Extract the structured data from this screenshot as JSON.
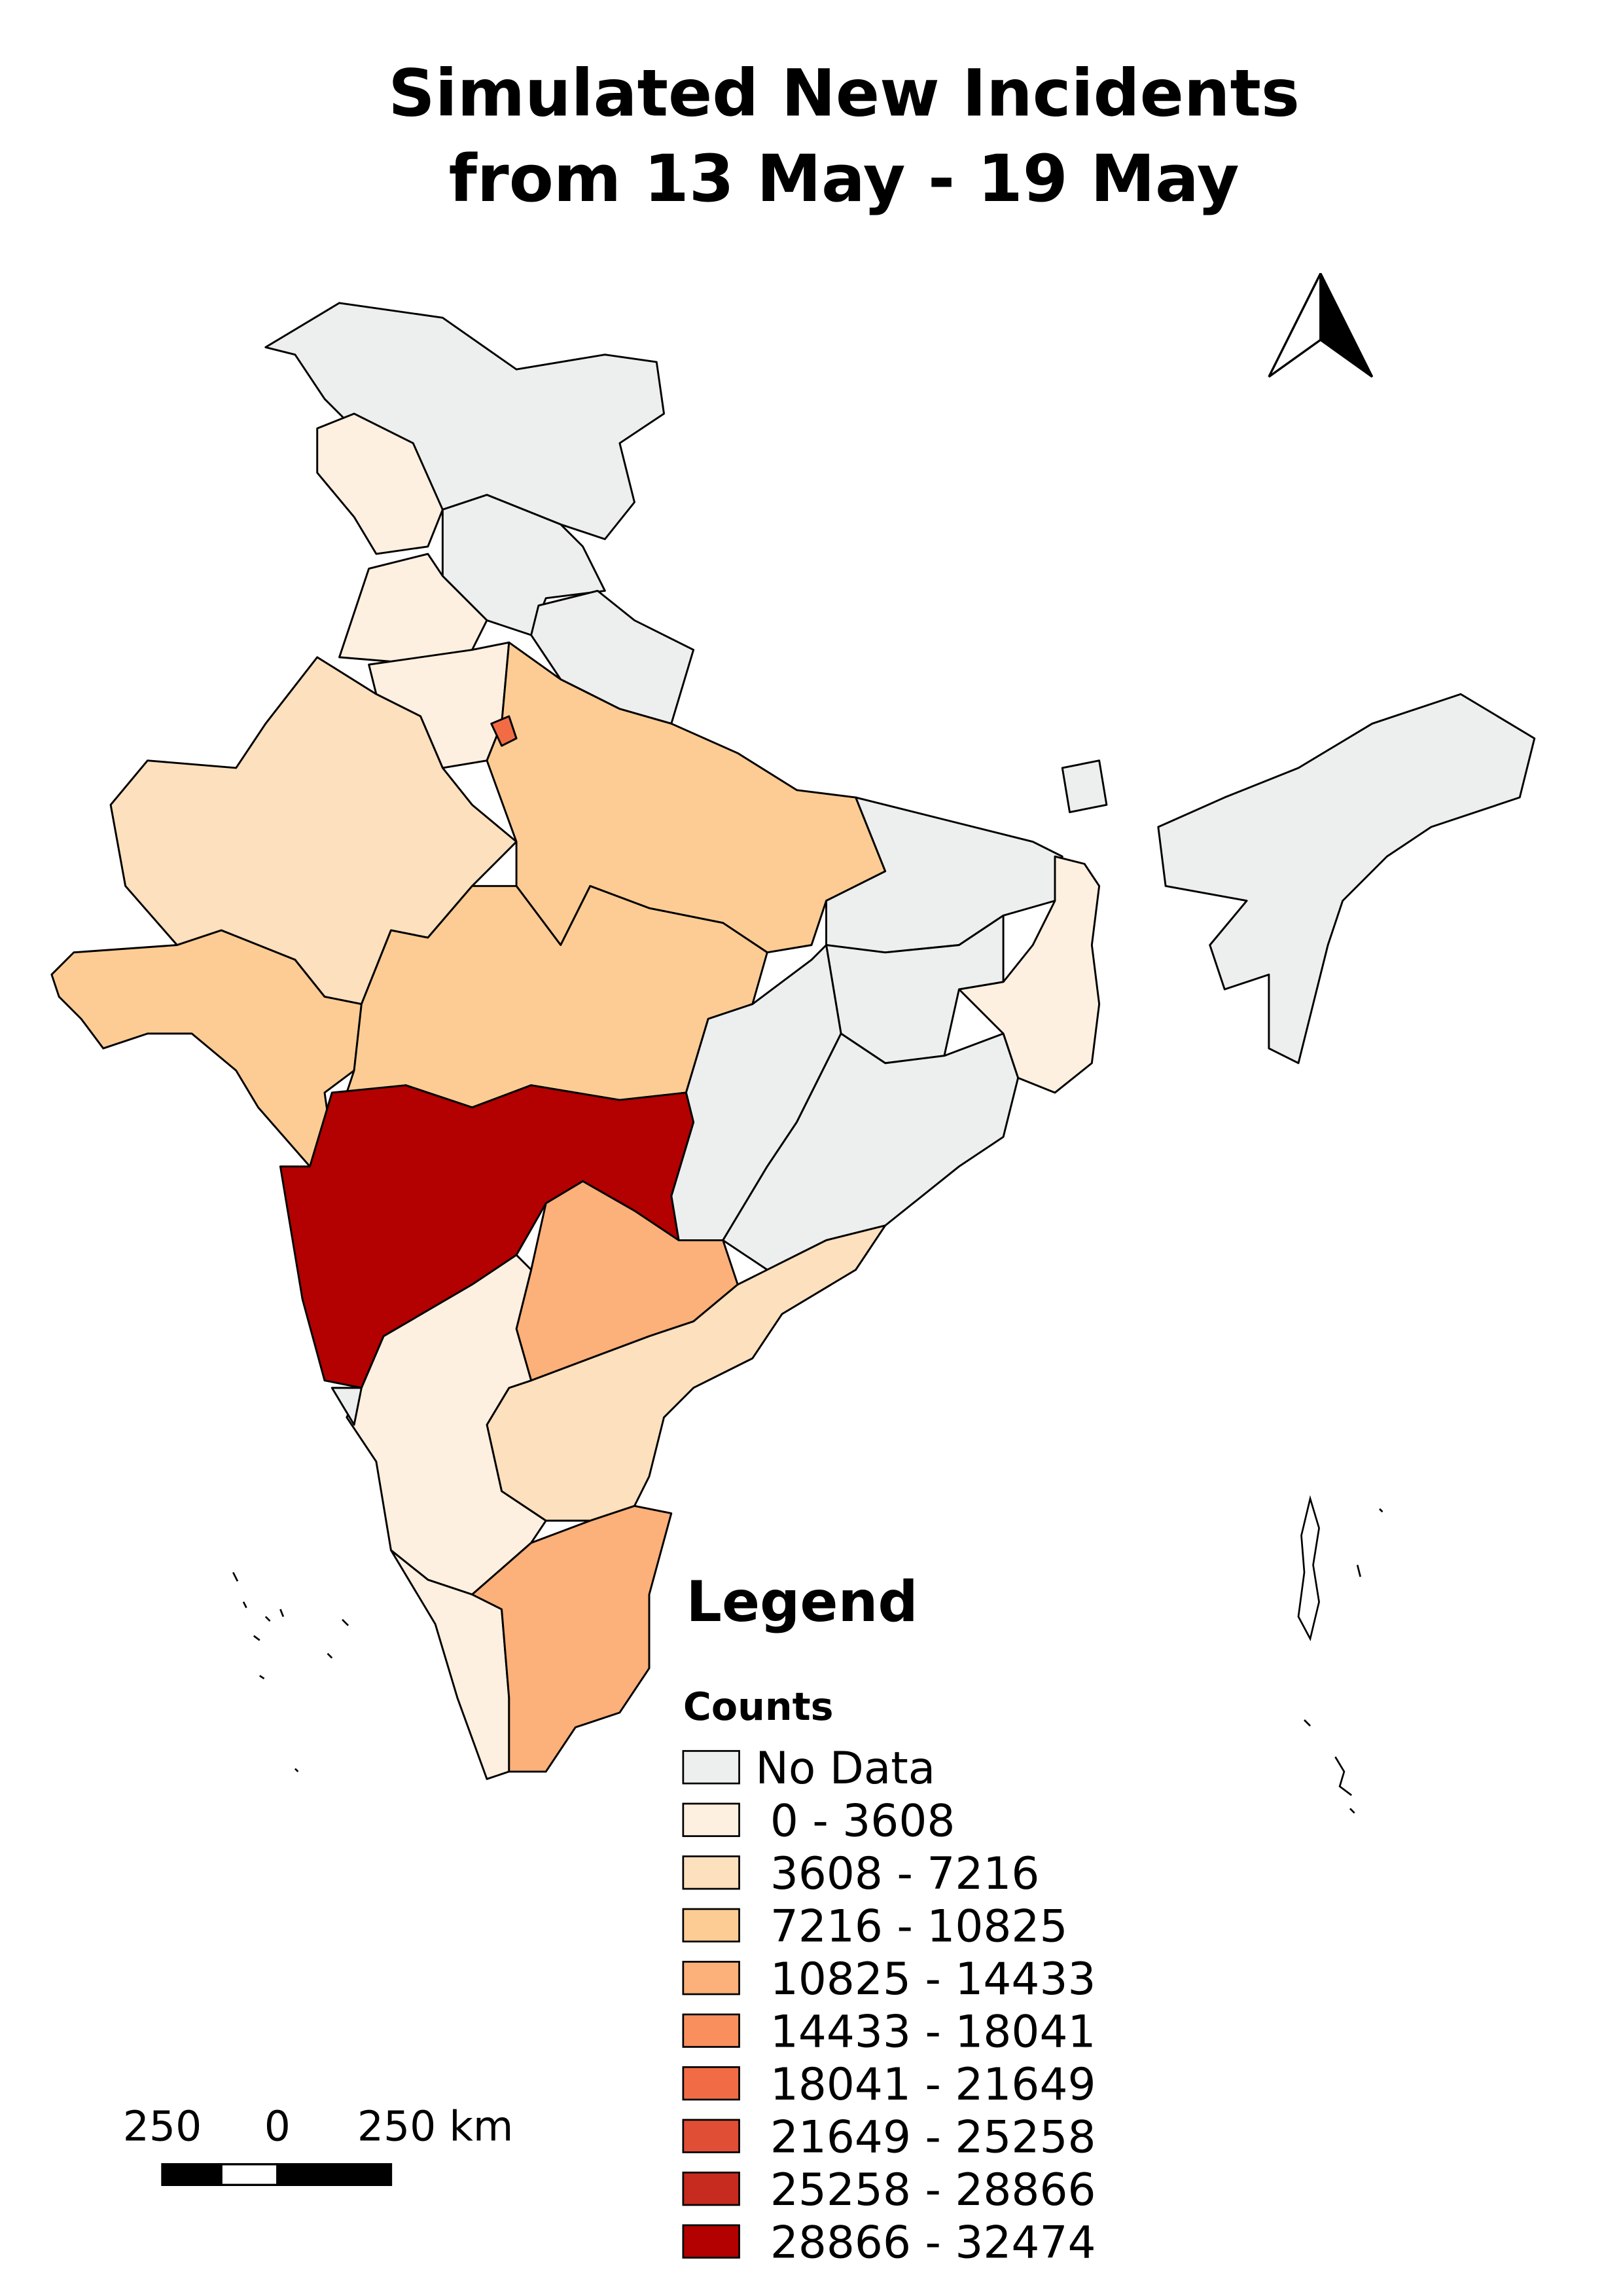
{
  "map": {
    "title": [
      "Simulated New Incidents",
      "from 13 May - 19 May"
    ],
    "legend": {
      "title": "Legend",
      "subtitle": "Counts",
      "items": [
        {
          "label": "No Data",
          "color": "#edeeee"
        },
        {
          "label": "0 - 3608",
          "color": "#fef0e0"
        },
        {
          "label": "3608 - 7216",
          "color": "#fde0bd"
        },
        {
          "label": "7216 - 10825",
          "color": "#fccc94"
        },
        {
          "label": "10825 - 14433",
          "color": "#fcb07a"
        },
        {
          "label": "14433 - 18041",
          "color": "#f98f5c"
        },
        {
          "label": "18041 - 21649",
          "color": "#f16c45"
        },
        {
          "label": "21649 - 25258",
          "color": "#e04e36"
        },
        {
          "label": "25258 - 28866",
          "color": "#c72a1f"
        },
        {
          "label": "28866 - 32474",
          "color": "#b30000"
        }
      ]
    },
    "scale_bar": {
      "labels": [
        "250",
        "0",
        "250 km"
      ]
    }
  }
}
